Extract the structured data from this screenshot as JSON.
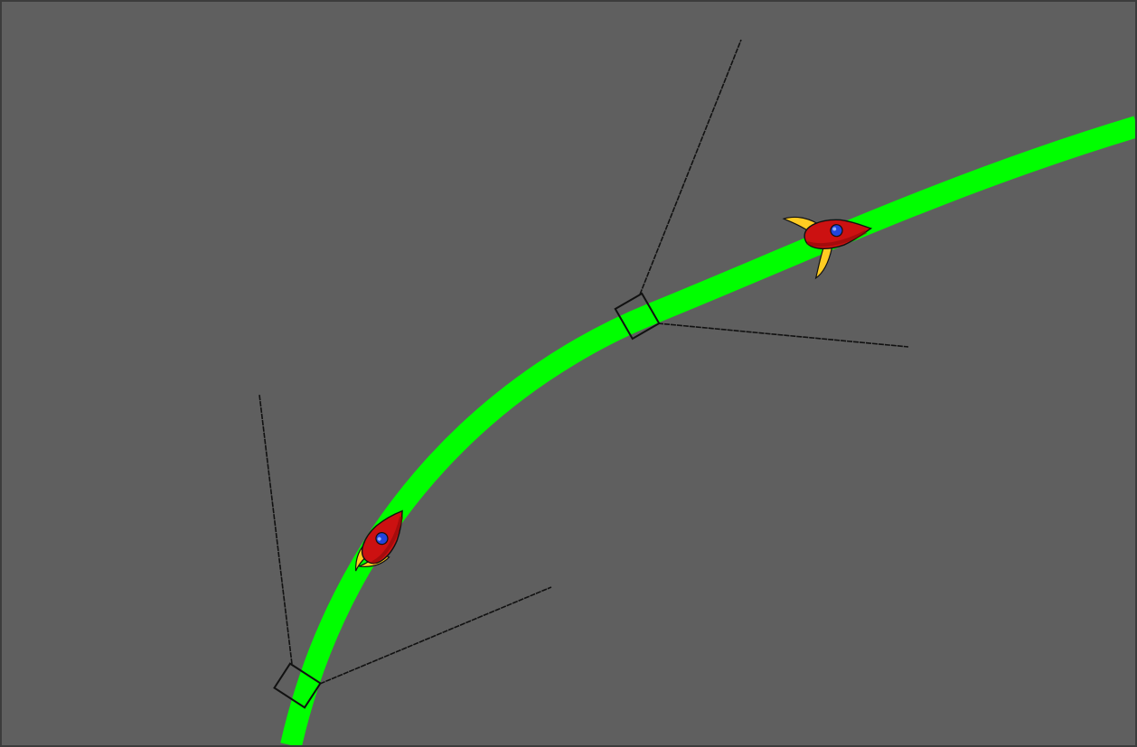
{
  "scene": {
    "background_color": "#5f5f5f",
    "frame_color": "#3c3c3c",
    "path_color": "#00ff00",
    "marker_color": "#111111",
    "guide_line_color": "#111111",
    "rocket_body_color": "#cc1111",
    "rocket_fin_color": "#ffcc22",
    "rocket_window_color": "#2244dd",
    "rocket_count": 2,
    "marker_count": 2
  }
}
